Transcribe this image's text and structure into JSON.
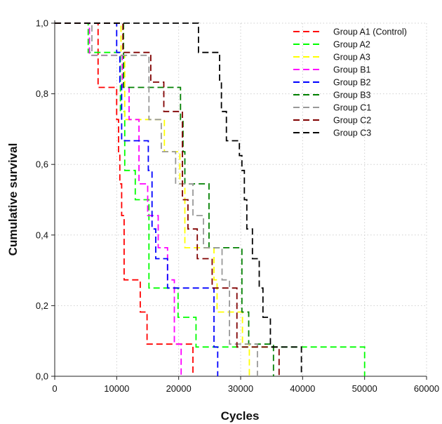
{
  "chart_data": {
    "type": "line",
    "subtype": "kaplan-meier step curves",
    "xlabel": "Cycles",
    "ylabel": "Cumulative survival",
    "xlim": [
      0,
      60000
    ],
    "ylim": [
      0,
      1
    ],
    "x_ticks": [
      0,
      10000,
      20000,
      30000,
      40000,
      50000,
      60000
    ],
    "x_tick_labels": [
      "0",
      "10000",
      "20000",
      "30000",
      "40000",
      "50000",
      "60000"
    ],
    "y_ticks": [
      0,
      0.2,
      0.4,
      0.6,
      0.8,
      1.0
    ],
    "y_tick_labels": [
      "0,0",
      "0,2",
      "0,4",
      "0,6",
      "0,8",
      "1,0"
    ],
    "grid": true,
    "legend_position": "top-right",
    "line_style": "dashed",
    "series": [
      {
        "name": "Group A1 (Control)",
        "color": "#ff0000",
        "x": [
          0,
          7000,
          10000,
          10300,
          10500,
          10800,
          11200,
          13800,
          14900,
          22300
        ],
        "y": [
          1.0,
          0.818,
          0.727,
          0.636,
          0.545,
          0.455,
          0.273,
          0.182,
          0.091,
          0.0
        ]
      },
      {
        "name": "Group A2",
        "color": "#00ff00",
        "x": [
          0,
          5400,
          10600,
          11300,
          13000,
          15200,
          19900,
          22800,
          50000
        ],
        "y": [
          1.0,
          0.917,
          0.75,
          0.583,
          0.5,
          0.25,
          0.167,
          0.083,
          0.0
        ]
      },
      {
        "name": "Group A3",
        "color": "#ffff00",
        "x": [
          0,
          10700,
          11300,
          17700,
          20200,
          21000,
          25700,
          26200,
          30300,
          31400
        ],
        "y": [
          1.0,
          0.909,
          0.727,
          0.636,
          0.545,
          0.364,
          0.273,
          0.182,
          0.091,
          0.0
        ]
      },
      {
        "name": "Group B1",
        "color": "#ff00ff",
        "x": [
          0,
          5600,
          10900,
          12000,
          13600,
          15000,
          16700,
          18200,
          19300,
          20400
        ],
        "y": [
          1.0,
          0.909,
          0.818,
          0.727,
          0.545,
          0.455,
          0.364,
          0.273,
          0.091,
          0.0
        ]
      },
      {
        "name": "Group B2",
        "color": "#0000ff",
        "x": [
          0,
          10000,
          10500,
          10800,
          15100,
          15700,
          16300,
          18200,
          19700,
          25700,
          26300
        ],
        "y": [
          1.0,
          0.917,
          0.833,
          0.667,
          0.583,
          0.417,
          0.333,
          0.25,
          0.25,
          0.083,
          0.0
        ]
      },
      {
        "name": "Group B3",
        "color": "#008000",
        "x": [
          0,
          11100,
          20300,
          20700,
          21000,
          24900,
          30200,
          31300,
          35300
        ],
        "y": [
          1.0,
          0.818,
          0.727,
          0.636,
          0.545,
          0.364,
          0.182,
          0.091,
          0.0
        ]
      },
      {
        "name": "Group C1",
        "color": "#999999",
        "x": [
          0,
          6000,
          15200,
          17200,
          19500,
          22300,
          24000,
          27000,
          28200,
          32700
        ],
        "y": [
          1.0,
          0.909,
          0.727,
          0.636,
          0.545,
          0.455,
          0.364,
          0.273,
          0.091,
          0.0
        ]
      },
      {
        "name": "Group C2",
        "color": "#800000",
        "x": [
          0,
          11000,
          15500,
          17600,
          20600,
          21500,
          23000,
          25400,
          29400,
          36200
        ],
        "y": [
          1.0,
          0.917,
          0.833,
          0.75,
          0.5,
          0.417,
          0.333,
          0.25,
          0.083,
          0.0
        ]
      },
      {
        "name": "Group C3",
        "color": "#000000",
        "x": [
          0,
          23200,
          26600,
          26900,
          27700,
          29800,
          30200,
          30600,
          31000,
          31900,
          33000,
          33600,
          34800,
          39800
        ],
        "y": [
          1.0,
          0.917,
          0.833,
          0.75,
          0.667,
          0.625,
          0.583,
          0.5,
          0.417,
          0.333,
          0.25,
          0.167,
          0.083,
          0.0
        ]
      }
    ]
  }
}
